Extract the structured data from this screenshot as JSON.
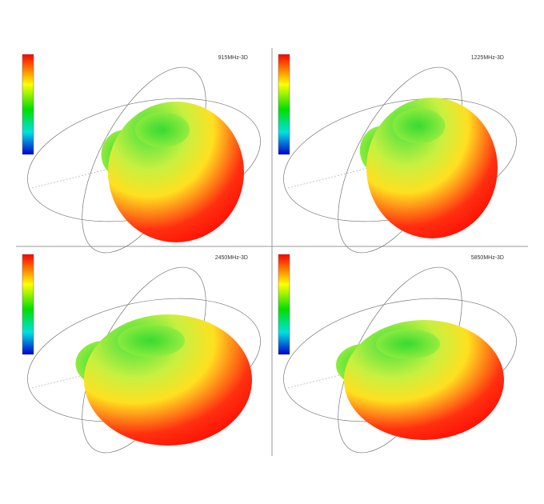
{
  "panels": [
    {
      "title": "915MHz-3D"
    },
    {
      "title": "1225MHz-3D"
    },
    {
      "title": "2450MHz-3D"
    },
    {
      "title": "5850MHz-3D"
    }
  ]
}
